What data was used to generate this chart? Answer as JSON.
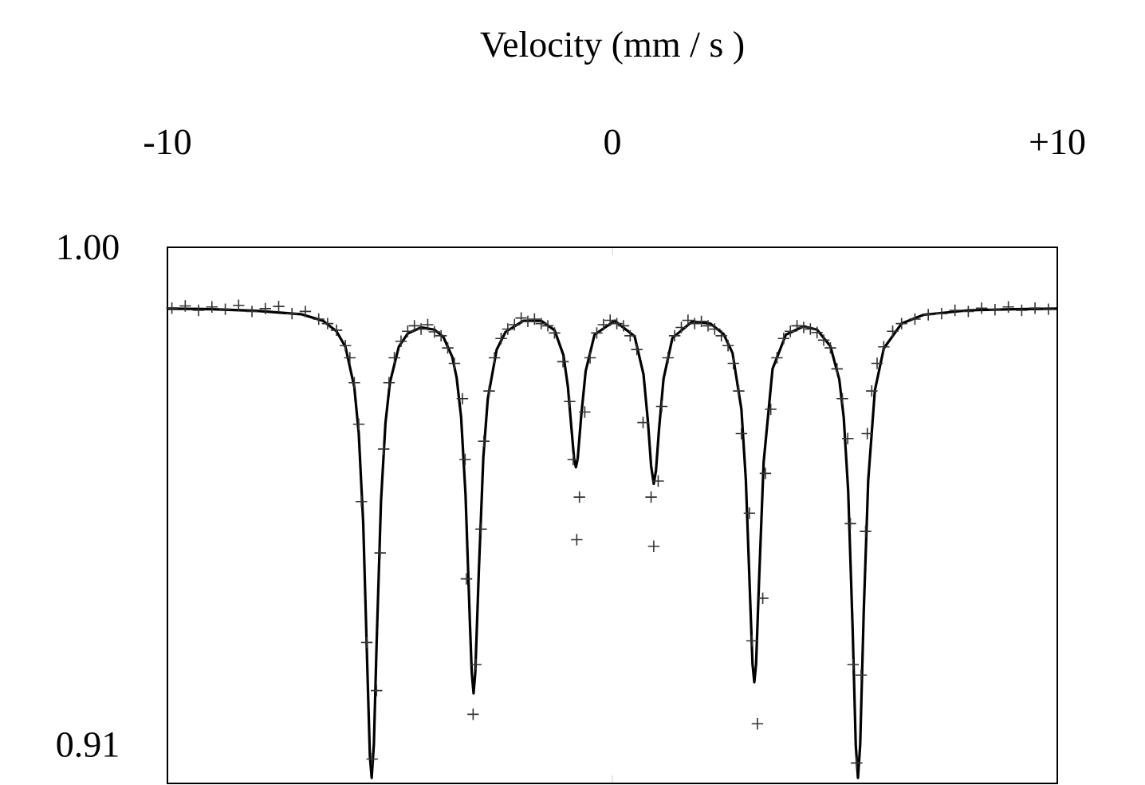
{
  "chart_data": {
    "type": "scatter",
    "xlabel": "Velocity (mm / s )",
    "xlim": [
      -10,
      10
    ],
    "xticks": [
      -10,
      0,
      {
        "value": 10,
        "label": "+10"
      }
    ],
    "ylim": [
      0.903,
      1.0
    ],
    "yticks": [
      {
        "value": 1.0,
        "label": "1.00"
      },
      0.91
    ],
    "series": [
      {
        "marker": "cross",
        "color": "#333333",
        "x": [
          -9.9,
          -9.6,
          -9.3,
          -9.0,
          -8.7,
          -8.4,
          -8.1,
          -7.8,
          -7.5,
          -7.2,
          -6.9,
          -6.6,
          -6.4,
          -6.2,
          -6.0,
          -5.9,
          -5.8,
          -5.7,
          -5.64,
          -5.52,
          -5.4,
          -5.3,
          -5.22,
          -5.14,
          -5.02,
          -4.9,
          -4.75,
          -4.6,
          -4.45,
          -4.3,
          -4.15,
          -4.0,
          -3.85,
          -3.7,
          -3.55,
          -3.37,
          -3.31,
          -3.28,
          -3.13,
          -3.07,
          -2.95,
          -2.89,
          -2.77,
          -2.65,
          -2.5,
          -2.35,
          -2.2,
          -2.05,
          -1.9,
          -1.75,
          -1.6,
          -1.45,
          -1.3,
          -1.11,
          -0.96,
          -0.88,
          -0.8,
          -0.74,
          -0.62,
          -0.5,
          -0.35,
          -0.2,
          -0.05,
          0.1,
          0.25,
          0.4,
          0.55,
          0.69,
          0.87,
          0.93,
          1.03,
          1.11,
          1.25,
          1.4,
          1.55,
          1.7,
          1.85,
          2.0,
          2.15,
          2.3,
          2.45,
          2.6,
          2.72,
          2.84,
          2.9,
          3.08,
          3.14,
          3.26,
          3.38,
          3.44,
          3.56,
          3.7,
          3.85,
          4.0,
          4.15,
          4.3,
          4.45,
          4.6,
          4.75,
          4.9,
          5.05,
          5.17,
          5.29,
          5.35,
          5.41,
          5.49,
          5.59,
          5.69,
          5.73,
          5.83,
          5.95,
          6.1,
          6.3,
          6.5,
          6.8,
          7.1,
          7.4,
          7.7,
          8.0,
          8.3,
          8.6,
          8.9,
          9.2,
          9.5,
          9.8
        ],
        "values": [
          0.989,
          0.9894,
          0.9886,
          0.9892,
          0.9888,
          0.9895,
          0.9884,
          0.9889,
          0.9893,
          0.988,
          0.9884,
          0.987,
          0.9862,
          0.985,
          0.9822,
          0.98,
          0.9755,
          0.968,
          0.954,
          0.9285,
          0.9074,
          0.9198,
          0.9447,
          0.9635,
          0.9755,
          0.98,
          0.983,
          0.9848,
          0.9858,
          0.9852,
          0.986,
          0.9847,
          0.984,
          0.9818,
          0.979,
          0.9726,
          0.9616,
          0.94,
          0.9155,
          0.9245,
          0.949,
          0.9649,
          0.974,
          0.98,
          0.9835,
          0.9852,
          0.986,
          0.9872,
          0.9866,
          0.987,
          0.9862,
          0.9858,
          0.9845,
          0.9793,
          0.9721,
          0.9616,
          0.9471,
          0.9548,
          0.9702,
          0.98,
          0.9845,
          0.986,
          0.9868,
          0.9862,
          0.9858,
          0.984,
          0.9815,
          0.9683,
          0.9548,
          0.9459,
          0.9577,
          0.9712,
          0.98,
          0.984,
          0.9855,
          0.9868,
          0.9862,
          0.9866,
          0.9858,
          0.9852,
          0.984,
          0.9822,
          0.979,
          0.974,
          0.9663,
          0.9519,
          0.9288,
          0.9138,
          0.9365,
          0.9591,
          0.9707,
          0.98,
          0.9835,
          0.9848,
          0.9858,
          0.9855,
          0.9852,
          0.9846,
          0.9832,
          0.9818,
          0.978,
          0.9726,
          0.9654,
          0.95,
          0.9245,
          0.9067,
          0.9226,
          0.9486,
          0.9663,
          0.974,
          0.979,
          0.982,
          0.9848,
          0.9862,
          0.987,
          0.9878,
          0.988,
          0.9886,
          0.9884,
          0.989,
          0.9887,
          0.9892,
          0.9886,
          0.989,
          0.9888
        ]
      },
      {
        "type": "line",
        "marker": "none",
        "line_style": "solid",
        "color": "#000000",
        "x": [
          -10,
          -9,
          -8,
          -7,
          -6.5,
          -6.2,
          -6.0,
          -5.8,
          -5.7,
          -5.6,
          -5.5,
          -5.45,
          -5.41,
          -5.36,
          -5.3,
          -5.2,
          -5.1,
          -5.0,
          -4.8,
          -4.6,
          -4.3,
          -4.0,
          -3.8,
          -3.6,
          -3.5,
          -3.4,
          -3.3,
          -3.2,
          -3.16,
          -3.12,
          -3.08,
          -3.0,
          -2.9,
          -2.8,
          -2.6,
          -2.4,
          -2.0,
          -1.6,
          -1.3,
          -1.1,
          -1.0,
          -0.92,
          -0.86,
          -0.82,
          -0.78,
          -0.7,
          -0.6,
          -0.4,
          0.05,
          0.5,
          0.7,
          0.8,
          0.87,
          0.93,
          0.98,
          1.05,
          1.15,
          1.35,
          1.8,
          2.2,
          2.5,
          2.7,
          2.9,
          3.0,
          3.1,
          3.15,
          3.19,
          3.23,
          3.3,
          3.4,
          3.6,
          3.9,
          4.3,
          4.6,
          4.9,
          5.1,
          5.2,
          5.3,
          5.4,
          5.47,
          5.52,
          5.57,
          5.65,
          5.75,
          5.9,
          6.1,
          6.5,
          7,
          8,
          9,
          10
        ],
        "values": [
          0.9889,
          0.9888,
          0.9885,
          0.9879,
          0.9867,
          0.9848,
          0.982,
          0.9747,
          0.9663,
          0.9501,
          0.9218,
          0.908,
          0.904,
          0.9101,
          0.9279,
          0.9541,
          0.9682,
          0.9755,
          0.982,
          0.9844,
          0.9855,
          0.9851,
          0.9838,
          0.9802,
          0.9764,
          0.9693,
          0.9552,
          0.9316,
          0.923,
          0.9193,
          0.9232,
          0.9417,
          0.962,
          0.9726,
          0.9815,
          0.9847,
          0.9867,
          0.9867,
          0.985,
          0.9805,
          0.9748,
          0.9673,
          0.9617,
          0.9602,
          0.9617,
          0.9695,
          0.9776,
          0.9842,
          0.9867,
          0.9839,
          0.977,
          0.9684,
          0.9605,
          0.9572,
          0.9596,
          0.9672,
          0.9762,
          0.9836,
          0.9866,
          0.9862,
          0.9843,
          0.9809,
          0.9707,
          0.9579,
          0.9356,
          0.9246,
          0.9213,
          0.9246,
          0.9404,
          0.9611,
          0.978,
          0.9842,
          0.9857,
          0.9851,
          0.9821,
          0.9761,
          0.9692,
          0.9559,
          0.931,
          0.91,
          0.904,
          0.91,
          0.9342,
          0.9578,
          0.9741,
          0.9817,
          0.9862,
          0.9878,
          0.9886,
          0.9888,
          0.9889
        ]
      }
    ]
  }
}
